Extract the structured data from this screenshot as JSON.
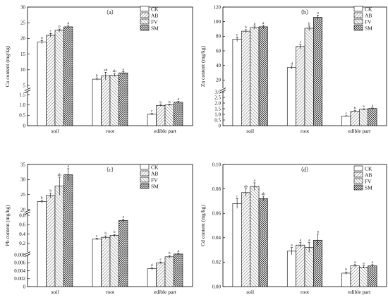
{
  "legend_colors": {
    "CK": "#ffffff",
    "AB": "#ffffff",
    "FV": "#ffffff",
    "SM": "#ffffff"
  },
  "chart_data": [
    {
      "type": "bar",
      "panel_label": "（a）",
      "ylabel": "Cu content (mg/kg)",
      "categories": [
        "soil",
        "root",
        "edible part"
      ],
      "broken_y": true,
      "lower_ylim": [
        0,
        1.5
      ],
      "upper_ylim": [
        5,
        30
      ],
      "lower_ticks": [
        "0",
        "0.5",
        "1.0",
        "1.5"
      ],
      "upper_ticks": [
        "5",
        "10",
        "15",
        "20",
        "25",
        "30"
      ],
      "series": [
        {
          "name": "CK",
          "values": [
            18.8,
            7.0,
            0.55
          ],
          "errors": [
            0.5,
            0.4,
            0.04
          ],
          "letters": [
            "d",
            "b",
            "c"
          ]
        },
        {
          "name": "AB",
          "values": [
            21.0,
            8.0,
            0.98
          ],
          "errors": [
            0.6,
            1.2,
            0.03
          ],
          "letters": [
            "c",
            "ab",
            "b"
          ]
        },
        {
          "name": "FV",
          "values": [
            22.6,
            8.3,
            1.0
          ],
          "errors": [
            0.4,
            0.5,
            0.03
          ],
          "letters": [
            "b",
            "ab",
            "b"
          ]
        },
        {
          "name": "SM",
          "values": [
            23.7,
            9.0,
            1.13
          ],
          "errors": [
            0.5,
            0.4,
            0.04
          ],
          "letters": [
            "a",
            "a",
            "a"
          ]
        }
      ]
    },
    {
      "type": "bar",
      "panel_label": "（b）",
      "ylabel": "Zn content (mg/kg)",
      "categories": [
        "soil",
        "root",
        "edible part"
      ],
      "broken_y": true,
      "lower_ylim": [
        0,
        3.0
      ],
      "upper_ylim": [
        0,
        120
      ],
      "lower_ticks": [
        "0",
        "0.5",
        "1.0",
        "1.5",
        "2.0",
        "2.5",
        "3.0"
      ],
      "upper_ticks": [
        "20",
        "40",
        "60",
        "80",
        "100",
        "120"
      ],
      "series": [
        {
          "name": "CK",
          "values": [
            76,
            37,
            0.85
          ],
          "errors": [
            3,
            2,
            0.03
          ],
          "letters": [
            "c",
            "d",
            "c"
          ]
        },
        {
          "name": "AB",
          "values": [
            87,
            66,
            1.28
          ],
          "errors": [
            2,
            3,
            0.05
          ],
          "letters": [
            "b",
            "c",
            "b"
          ]
        },
        {
          "name": "FV",
          "values": [
            92,
            91,
            1.45
          ],
          "errors": [
            2,
            3,
            0.04
          ],
          "letters": [
            "a",
            "b",
            "a"
          ]
        },
        {
          "name": "SM",
          "values": [
            93,
            106,
            1.52
          ],
          "errors": [
            2,
            3,
            0.05
          ],
          "letters": [
            "a",
            "a",
            "a"
          ]
        }
      ]
    },
    {
      "type": "bar",
      "panel_label": "（c）",
      "ylabel": "Pb content (mg/kg)",
      "categories": [
        "soil",
        "root",
        "edible part"
      ],
      "broken_y": true,
      "lower_ylim": [
        0,
        0.008
      ],
      "middle_ylim": [
        0,
        0.8
      ],
      "upper_ylim": [
        20,
        35
      ],
      "lower_ticks": [
        "0",
        "0.002",
        "0.004",
        "0.006",
        "0.008"
      ],
      "middle_ticks": [
        "0.2",
        "0.4",
        "0.6",
        "0.8"
      ],
      "upper_ticks": [
        "20",
        "25",
        "30",
        "35"
      ],
      "series": [
        {
          "name": "CK",
          "values": [
            22.7,
            0.29,
            0.0045
          ],
          "errors": [
            0.5,
            0.02,
            0.0003
          ],
          "letters": [
            "b",
            "c",
            "d"
          ]
        },
        {
          "name": "AB",
          "values": [
            24.7,
            0.33,
            0.006
          ],
          "errors": [
            0.8,
            0.03,
            0.0002
          ],
          "letters": [
            "b",
            "b",
            "c"
          ]
        },
        {
          "name": "FV",
          "values": [
            27.8,
            0.37,
            0.0075
          ],
          "errors": [
            3.0,
            0.02,
            0.0003
          ],
          "letters": [
            "ab",
            "b",
            "b"
          ]
        },
        {
          "name": "SM",
          "values": [
            31.6,
            0.69,
            0.0082
          ],
          "errors": [
            2.0,
            0.03,
            0.0002
          ],
          "letters": [
            "a",
            "a",
            "a"
          ]
        }
      ]
    },
    {
      "type": "bar",
      "panel_label": "（d）",
      "ylabel": "Cd content (mg/kg)",
      "categories": [
        "soil",
        "root",
        "edible part"
      ],
      "broken_y": false,
      "ylim": [
        0,
        0.1
      ],
      "ticks": [
        "0.00",
        "0.02",
        "0.04",
        "0.06",
        "0.08",
        "0.10"
      ],
      "series": [
        {
          "name": "CK",
          "values": [
            0.068,
            0.029,
            0.011
          ],
          "errors": [
            0.004,
            0.003,
            0.001
          ],
          "letters": [
            "c",
            "a",
            "b"
          ]
        },
        {
          "name": "AB",
          "values": [
            0.077,
            0.034,
            0.017
          ],
          "errors": [
            0.003,
            0.002,
            0.001
          ],
          "letters": [
            "ab",
            "a",
            "a"
          ]
        },
        {
          "name": "FV",
          "values": [
            0.082,
            0.032,
            0.016
          ],
          "errors": [
            0.003,
            0.004,
            0.001
          ],
          "letters": [
            "a",
            "a",
            "a"
          ]
        },
        {
          "name": "SM",
          "values": [
            0.072,
            0.038,
            0.017
          ],
          "errors": [
            0.002,
            0.005,
            0.001
          ],
          "letters": [
            "ab",
            "a",
            "a"
          ]
        }
      ]
    }
  ]
}
